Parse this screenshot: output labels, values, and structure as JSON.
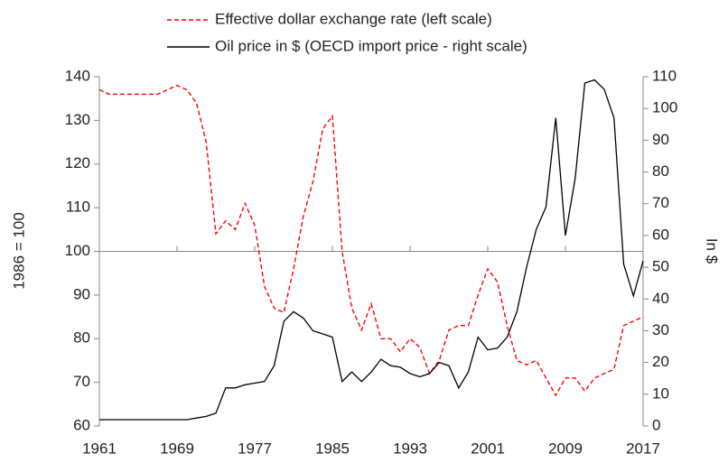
{
  "chart_data": {
    "type": "line",
    "ylabel": "1986 = 100",
    "y2label": "In $",
    "x": [
      1961,
      1962,
      1963,
      1964,
      1965,
      1966,
      1967,
      1968,
      1969,
      1970,
      1971,
      1972,
      1973,
      1974,
      1975,
      1976,
      1977,
      1978,
      1979,
      1980,
      1981,
      1982,
      1983,
      1984,
      1985,
      1986,
      1987,
      1988,
      1989,
      1990,
      1991,
      1992,
      1993,
      1994,
      1995,
      1996,
      1997,
      1998,
      1999,
      2000,
      2001,
      2002,
      2003,
      2004,
      2005,
      2006,
      2007,
      2008,
      2009,
      2010,
      2011,
      2012,
      2013,
      2014,
      2015,
      2016,
      2017
    ],
    "series": [
      {
        "name": "Effective dollar exchange rate (left scale)",
        "color": "#ff0000",
        "dashed": true,
        "axis": "y",
        "values": [
          137,
          136,
          136,
          136,
          136,
          136,
          136,
          137,
          138,
          137,
          134,
          125,
          104,
          107,
          105,
          111,
          106,
          92,
          87,
          86,
          96,
          108,
          116,
          128,
          131,
          100,
          87,
          82,
          88,
          80,
          80,
          77,
          80,
          78,
          72,
          75,
          82,
          83,
          83,
          90,
          96,
          93,
          83,
          75,
          74,
          75,
          71,
          67,
          71,
          71,
          68,
          71,
          72,
          73,
          83,
          84,
          85
        ]
      },
      {
        "name": "Oil price in $ (OECD import price - right scale)",
        "color": "#000000",
        "dashed": false,
        "axis": "y2",
        "values": [
          2,
          2,
          2,
          2,
          2,
          2,
          2,
          2,
          2,
          2,
          2.5,
          3,
          4,
          12,
          12,
          13,
          13.5,
          14,
          19,
          33,
          36,
          34,
          30,
          29,
          28,
          14,
          17,
          14,
          17,
          21,
          19,
          18.5,
          16.5,
          15.5,
          16.5,
          20,
          19,
          12,
          17,
          28,
          24,
          24.5,
          28,
          36,
          50,
          62,
          69,
          97,
          60,
          78,
          108,
          109,
          106,
          97,
          51,
          41,
          52
        ]
      }
    ],
    "xlim": [
      1961,
      2017
    ],
    "xticks": [
      1961,
      1969,
      1977,
      1985,
      1993,
      2001,
      2009,
      2017
    ],
    "ylim": [
      60,
      140
    ],
    "yticks": [
      60,
      70,
      80,
      90,
      100,
      110,
      120,
      130,
      140
    ],
    "y2lim": [
      0,
      110
    ],
    "y2ticks": [
      0,
      10,
      20,
      30,
      40,
      50,
      60,
      70,
      80,
      90,
      100,
      110
    ],
    "x_axis_at": 100,
    "grid": false,
    "legend": "top"
  }
}
